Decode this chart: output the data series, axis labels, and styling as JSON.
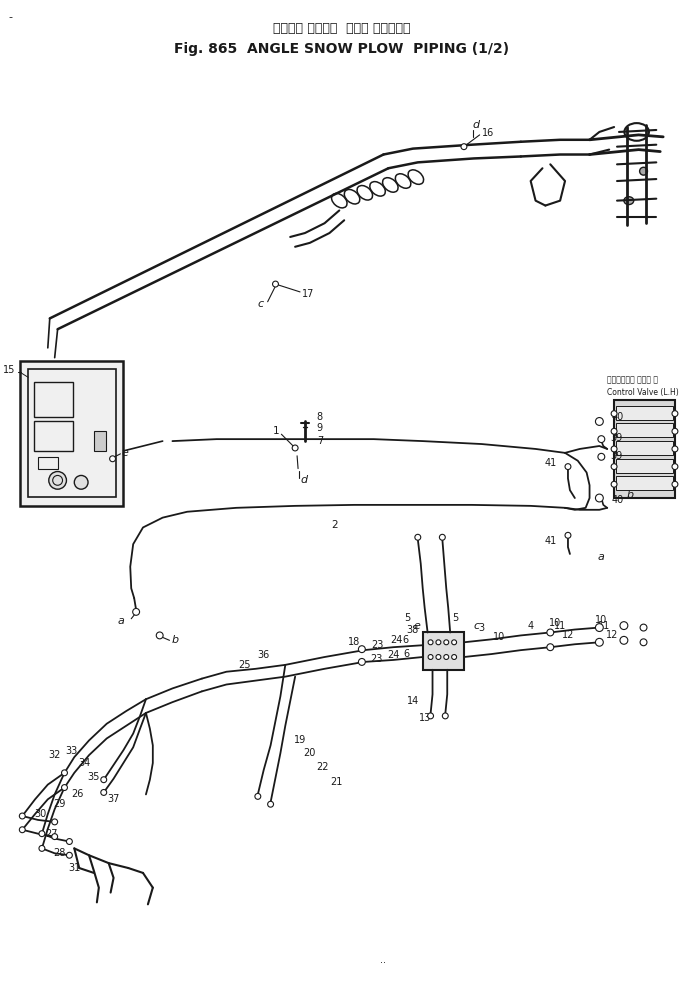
{
  "title_jp": "アングル スノーー  プラウ バイピング",
  "title_en": "Fig. 865  ANGLE SNOW PLOW  PIPING (1/2)",
  "bg_color": "#ffffff",
  "fg_color": "#1a1a1a",
  "fig_width": 6.94,
  "fig_height": 9.98,
  "dpi": 100,
  "control_valve_jp": "コントロール バルブ 左",
  "control_valve_en": "Control Valve (L.H)"
}
